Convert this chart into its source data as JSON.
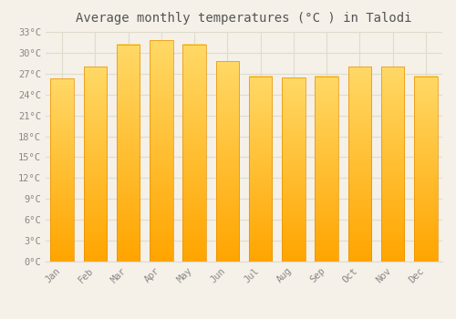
{
  "months": [
    "Jan",
    "Feb",
    "Mar",
    "Apr",
    "May",
    "Jun",
    "Jul",
    "Aug",
    "Sep",
    "Oct",
    "Nov",
    "Dec"
  ],
  "temperatures": [
    26.3,
    28.0,
    31.2,
    31.8,
    31.2,
    28.8,
    26.6,
    26.4,
    26.6,
    28.0,
    28.0,
    26.6
  ],
  "bar_color_top": "#FFD966",
  "bar_color_bottom": "#FFA500",
  "bar_edge_color": "#E89000",
  "background_color": "#F5F0E8",
  "grid_color": "#DDDDCC",
  "title": "Average monthly temperatures (°C ) in Talodi",
  "title_fontsize": 10,
  "tick_label_color": "#888888",
  "title_color": "#555555",
  "ylim": [
    0,
    33
  ],
  "ytick_interval": 3,
  "ylabel_suffix": "°C",
  "font_family": "monospace"
}
